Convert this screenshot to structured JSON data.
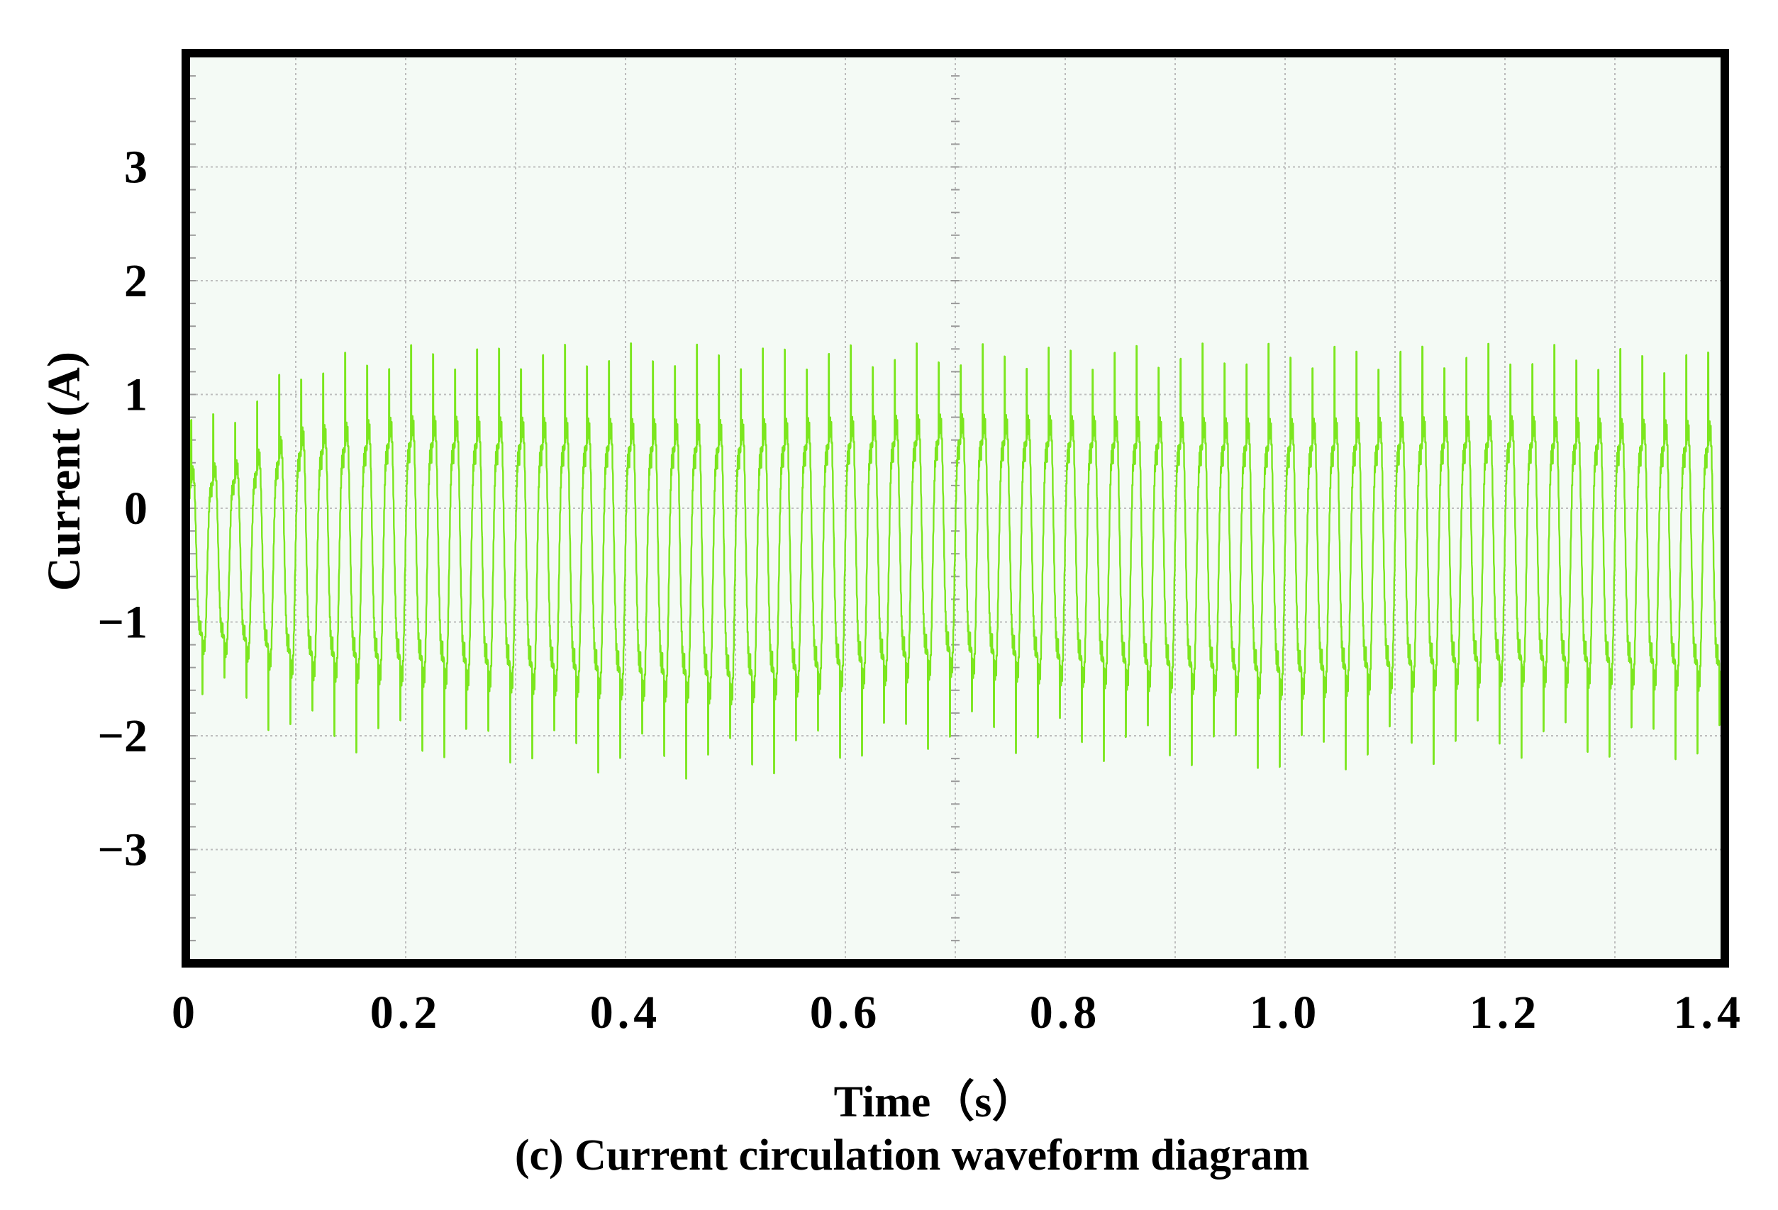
{
  "chart_data": {
    "type": "line",
    "title": "(c) Current circulation waveform diagram",
    "xlabel": "Time（s）",
    "ylabel": "Current (A)",
    "xlim": [
      0,
      1.4
    ],
    "ylim": [
      -4,
      4
    ],
    "x_tick_labels": [
      "0",
      "0.2",
      "0.4",
      "0.6",
      "0.8",
      "1.0",
      "1.2",
      "1.4"
    ],
    "x_tick_values": [
      0,
      0.2,
      0.4,
      0.6,
      0.8,
      1.0,
      1.2,
      1.4
    ],
    "y_tick_labels": [
      "3",
      "2",
      "1",
      "0",
      "−1",
      "−2",
      "−3"
    ],
    "y_tick_values": [
      3,
      2,
      1,
      0,
      -1,
      -2,
      -3
    ],
    "grid": true,
    "series": [
      {
        "color": "#7be61e",
        "description": "circulating current oscillation, approx. 50 Hz",
        "envelope_points": [
          {
            "t": 0.0,
            "max": 0.8,
            "min": -1.7
          },
          {
            "t": 0.05,
            "max": 0.9,
            "min": -1.8
          },
          {
            "t": 0.1,
            "max": 1.3,
            "min": -2.1
          },
          {
            "t": 0.2,
            "max": 1.45,
            "min": -2.2
          },
          {
            "t": 0.4,
            "max": 1.45,
            "min": -2.35
          },
          {
            "t": 0.5,
            "max": 1.45,
            "min": -2.4
          },
          {
            "t": 0.7,
            "max": 1.45,
            "min": -2.1
          },
          {
            "t": 0.8,
            "max": 1.45,
            "min": -2.2
          },
          {
            "t": 1.0,
            "max": 1.45,
            "min": -2.35
          },
          {
            "t": 1.2,
            "max": 1.45,
            "min": -2.2
          },
          {
            "t": 1.4,
            "max": 1.4,
            "min": -2.25
          }
        ]
      }
    ]
  },
  "colors": {
    "plot_background": "#f4faf5",
    "frame": "#000000",
    "grid": "#bdbdbd",
    "trace": "#7be61e"
  }
}
